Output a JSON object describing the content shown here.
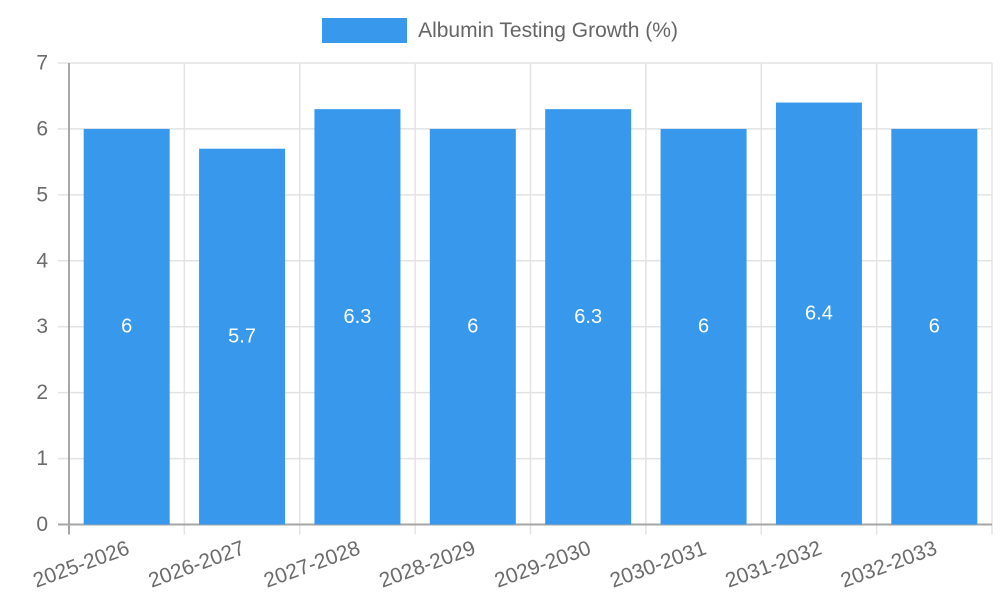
{
  "colors": {
    "bar": "#3898ec",
    "grid": "#e3e3e3",
    "axis": "#a6a6a6",
    "tick_text": "#6b6b6b",
    "legend_text": "#666666",
    "bar_label": "#ffffff",
    "background": "#ffffff"
  },
  "legend": {
    "label": "Albumin Testing Growth (%)"
  },
  "chart_data": {
    "type": "bar",
    "title": "Albumin Testing Growth (%)",
    "categories": [
      "2025-2026",
      "2026-2027",
      "2027-2028",
      "2028-2029",
      "2029-2030",
      "2030-2031",
      "2031-2032",
      "2032-2033"
    ],
    "values": [
      6,
      5.7,
      6.3,
      6,
      6.3,
      6,
      6.4,
      6
    ],
    "bar_value_labels": [
      "6",
      "5.7",
      "6.3",
      "6",
      "6.3",
      "6",
      "6.4",
      "6"
    ],
    "xlabel": "",
    "ylabel": "",
    "ylim": [
      0,
      7
    ],
    "ytick_step": 1,
    "ytick_labels": [
      "0",
      "1",
      "2",
      "3",
      "4",
      "5",
      "6",
      "7"
    ],
    "grid": true,
    "legend_position": "top",
    "x_label_rotation_deg": -20
  }
}
